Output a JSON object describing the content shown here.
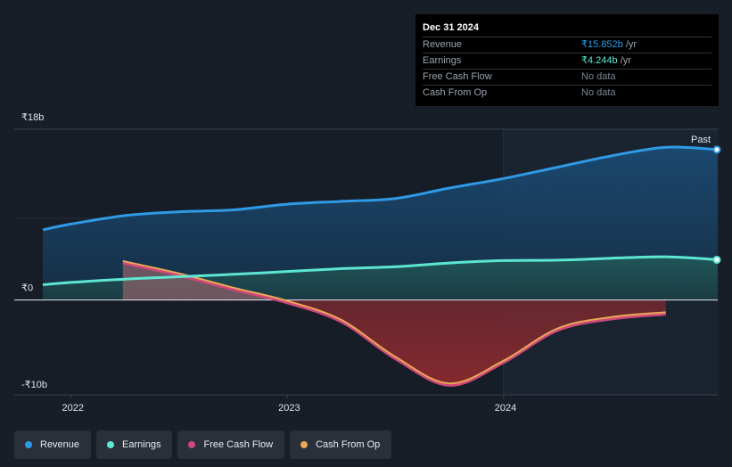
{
  "tooltip": {
    "date": "Dec 31 2024",
    "rows": [
      {
        "label": "Revenue",
        "value": "₹15.852b",
        "unit": " /yr",
        "color": "#2f9ae6"
      },
      {
        "label": "Earnings",
        "value": "₹4.244b",
        "unit": " /yr",
        "color": "#5de6d2"
      },
      {
        "label": "Free Cash Flow",
        "value": "No data",
        "unit": "",
        "color": "#7a838e"
      },
      {
        "label": "Cash From Op",
        "value": "No data",
        "unit": "",
        "color": "#7a838e"
      }
    ]
  },
  "legend": [
    {
      "label": "Revenue",
      "color": "#2f9ae6"
    },
    {
      "label": "Earnings",
      "color": "#5de6d2"
    },
    {
      "label": "Free Cash Flow",
      "color": "#d0477a"
    },
    {
      "label": "Cash From Op",
      "color": "#e8a857"
    }
  ],
  "chart_data": {
    "type": "area",
    "title": "",
    "past_label": "Past",
    "y_tick_labels": [
      {
        "value": 18,
        "label": "₹18b"
      },
      {
        "value": 0,
        "label": "₹0"
      },
      {
        "value": -10,
        "label": "-₹10b"
      }
    ],
    "x_tick_labels": [
      {
        "value": 2022.0,
        "label": "2022"
      },
      {
        "value": 2023.0,
        "label": "2023"
      },
      {
        "value": 2024.0,
        "label": "2024"
      }
    ],
    "xlim": [
      2021.87,
      2024.99
    ],
    "ylim": [
      -10,
      18
    ],
    "past_start": 2024.0,
    "series": [
      {
        "name": "Revenue",
        "color": "#2f9ae6",
        "unit": "₹b",
        "x": [
          2021.87,
          2022.0,
          2022.25,
          2022.5,
          2022.75,
          2023.0,
          2023.25,
          2023.5,
          2023.75,
          2024.0,
          2024.25,
          2024.5,
          2024.75,
          2024.99
        ],
        "y": [
          7.4,
          8.0,
          8.9,
          9.3,
          9.5,
          10.1,
          10.4,
          10.7,
          11.8,
          12.8,
          14.0,
          15.2,
          16.1,
          15.85
        ]
      },
      {
        "name": "Earnings",
        "color": "#5de6d2",
        "unit": "₹b",
        "x": [
          2021.87,
          2022.0,
          2022.25,
          2022.5,
          2022.75,
          2023.0,
          2023.25,
          2023.5,
          2023.75,
          2024.0,
          2024.25,
          2024.5,
          2024.75,
          2024.99
        ],
        "y": [
          1.6,
          1.85,
          2.2,
          2.45,
          2.7,
          3.0,
          3.3,
          3.5,
          3.9,
          4.15,
          4.2,
          4.4,
          4.55,
          4.24
        ]
      },
      {
        "name": "Free Cash Flow",
        "color": "#d0477a",
        "unit": "₹b",
        "x": [
          2022.24,
          2022.5,
          2022.75,
          2023.0,
          2023.25,
          2023.5,
          2023.75,
          2024.0,
          2024.25,
          2024.5,
          2024.75
        ],
        "y": [
          3.9,
          2.6,
          1.1,
          -0.3,
          -2.3,
          -6.2,
          -9.0,
          -6.6,
          -3.2,
          -2.0,
          -1.5
        ]
      },
      {
        "name": "Cash From Op",
        "color": "#e8a857",
        "unit": "₹b",
        "x": [
          2022.24,
          2022.5,
          2022.75,
          2023.0,
          2023.25,
          2023.5,
          2023.75,
          2024.0,
          2024.25,
          2024.5,
          2024.75
        ],
        "y": [
          4.1,
          2.8,
          1.3,
          -0.1,
          -2.1,
          -6.0,
          -8.8,
          -6.4,
          -3.0,
          -1.8,
          -1.3
        ]
      }
    ]
  }
}
